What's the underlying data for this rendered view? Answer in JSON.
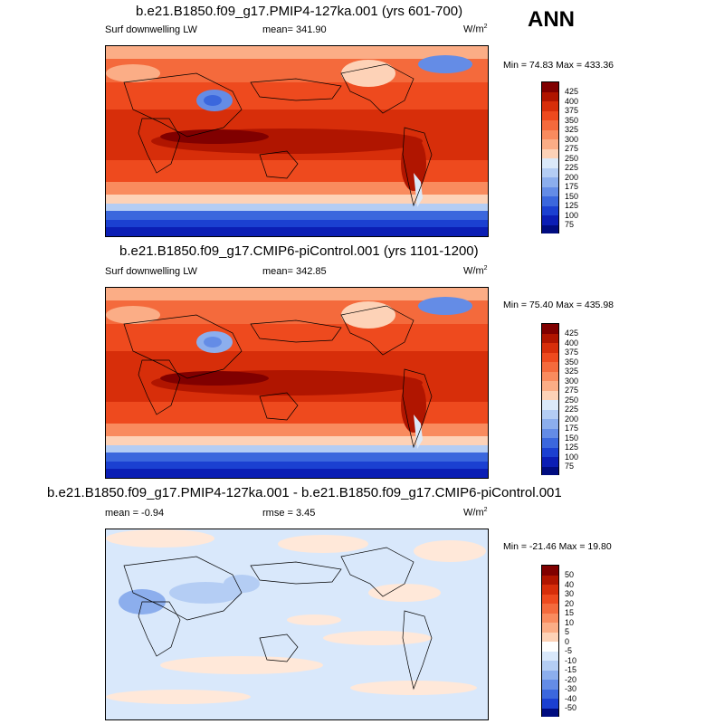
{
  "season": "ANN",
  "panels": [
    {
      "title": "b.e21.B1850.f09_g17.PMIP4-127ka.001 (yrs 601-700)",
      "left_label": "Surf downwelling LW",
      "center_label": "mean= 341.90",
      "units_main": "W/m",
      "units_exp": "2",
      "minmax": "Min =  74.83 Max = 433.36",
      "colorbar": {
        "labels": [
          "425",
          "400",
          "375",
          "350",
          "325",
          "300",
          "275",
          "250",
          "225",
          "200",
          "175",
          "150",
          "125",
          "100",
          "75"
        ]
      }
    },
    {
      "title": "b.e21.B1850.f09_g17.CMIP6-piControl.001 (yrs 1101-1200)",
      "left_label": "Surf downwelling LW",
      "center_label": "mean= 342.85",
      "units_main": "W/m",
      "units_exp": "2",
      "minmax": "Min =  75.40 Max = 435.98",
      "colorbar": {
        "labels": [
          "425",
          "400",
          "375",
          "350",
          "325",
          "300",
          "275",
          "250",
          "225",
          "200",
          "175",
          "150",
          "125",
          "100",
          "75"
        ]
      }
    },
    {
      "title": "b.e21.B1850.f09_g17.PMIP4-127ka.001 - b.e21.B1850.f09_g17.CMIP6-piControl.001",
      "left_label": "mean =  -0.94",
      "center_label": "rmse =   3.45",
      "units_main": "W/m",
      "units_exp": "2",
      "minmax": "Min = -21.46 Max =  19.80",
      "colorbar": {
        "labels": [
          "50",
          "40",
          "30",
          "20",
          "15",
          "10",
          "5",
          "0",
          "-5",
          "-10",
          "-15",
          "-20",
          "-30",
          "-40",
          "-50"
        ]
      }
    }
  ],
  "colors": {
    "abs_scale": [
      "#800000",
      "#b01500",
      "#d72e0a",
      "#ee4a1e",
      "#f46a3c",
      "#f98b5e",
      "#fbad86",
      "#fdd2b7",
      "#dbe9f9",
      "#b4cdf4",
      "#8caeed",
      "#648ce6",
      "#3b67dd",
      "#1b40d1",
      "#0b1eb5",
      "#000c80"
    ],
    "diff_scale": [
      "#800000",
      "#b01500",
      "#d72e0a",
      "#ee4a1e",
      "#f46a3c",
      "#f98b5e",
      "#fbad86",
      "#fdd2b7",
      "#ffe8d9",
      "#d9e8fb",
      "#b4cdf4",
      "#8caeed",
      "#648ce6",
      "#3b67dd",
      "#1b40d1",
      "#000c80"
    ]
  }
}
